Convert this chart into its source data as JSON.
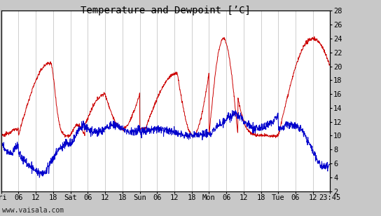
{
  "title": "Temperature and Dewpoint [’C]",
  "ylabel_right_ticks": [
    2,
    4,
    6,
    8,
    10,
    12,
    14,
    16,
    18,
    20,
    22,
    24,
    26,
    28
  ],
  "ylim": [
    2,
    28
  ],
  "xlim_hours": [
    0,
    113.75
  ],
  "xtick_labels": [
    "Fri",
    "06",
    "12",
    "18",
    "Sat",
    "06",
    "12",
    "18",
    "Sun",
    "06",
    "12",
    "18",
    "Mon",
    "06",
    "12",
    "18",
    "Tue",
    "06",
    "12",
    "23:45"
  ],
  "xtick_positions": [
    0,
    6,
    12,
    18,
    24,
    30,
    36,
    42,
    48,
    54,
    60,
    66,
    72,
    78,
    84,
    90,
    96,
    102,
    108,
    113.75
  ],
  "bg_color": "#c8c8c8",
  "plot_bg_color": "#ffffff",
  "temp_color": "#cc0000",
  "dewp_color": "#0000cc",
  "grid_color": "#aaaaaa",
  "linewidth": 0.7,
  "watermark": "www.vaisala.com",
  "title_fontsize": 10,
  "tick_fontsize": 7.5,
  "watermark_fontsize": 7
}
